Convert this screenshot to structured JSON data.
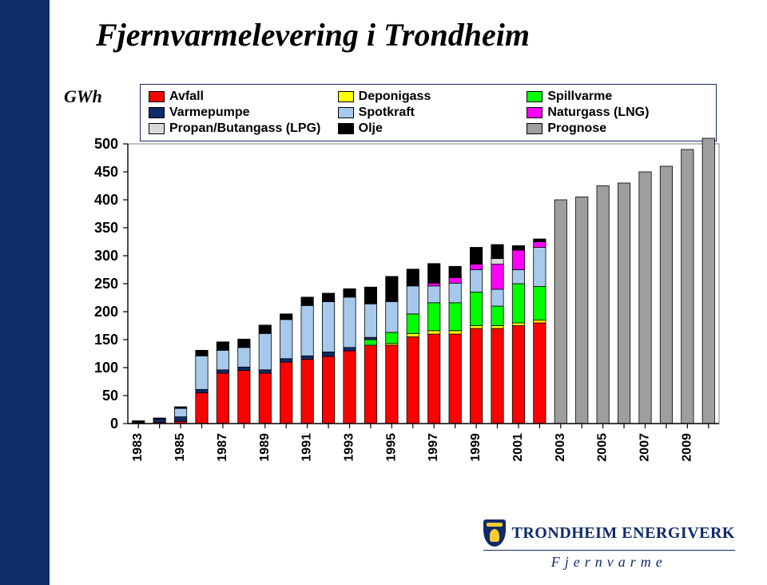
{
  "title": "Fjernvarmelevering i Trondheim",
  "y_unit": "GWh",
  "logo": {
    "brand": "TRONDHEIM ENERGIVERK",
    "sub": "Fjernvarme"
  },
  "chart": {
    "type": "stacked-bar",
    "background_color": "#ffffff",
    "plot_border_color": "#808080",
    "tick_color": "#000000",
    "ylim": [
      0,
      500
    ],
    "ytick_step": 50,
    "yticks": [
      0,
      50,
      100,
      150,
      200,
      250,
      300,
      350,
      400,
      450,
      500
    ],
    "axis_fontsize": 18,
    "axis_fontweight": "bold",
    "axis_fontfamily": "Arial, sans-serif",
    "xlabel_fontsize": 16,
    "bar_width": 0.58,
    "years": [
      1983,
      1984,
      1985,
      1986,
      1987,
      1988,
      1989,
      1990,
      1991,
      1992,
      1993,
      1994,
      1995,
      1996,
      1997,
      1998,
      1999,
      2000,
      2001,
      2002,
      2003,
      2004,
      2005,
      2006,
      2007,
      2008,
      2009,
      2010
    ],
    "x_tick_labels": [
      "1983",
      "",
      "1985",
      "",
      "1987",
      "",
      "1989",
      "",
      "1991",
      "",
      "1993",
      "",
      "1995",
      "",
      "1997",
      "",
      "1999",
      "",
      "2001",
      "",
      "2003",
      "",
      "2005",
      "",
      "2007",
      "",
      "2009",
      ""
    ],
    "legend": {
      "border_color": "#1a2a6b",
      "fontsize": 16,
      "fontfamily": "Arial, sans-serif",
      "order": [
        "Avfall",
        "Deponigass",
        "Spillvarme",
        "Varmepumpe",
        "Spotkraft",
        "Naturgass (LNG)",
        "Propan/Butangass (LPG)",
        "Olje",
        "Prognose"
      ]
    },
    "series": {
      "Avfall": {
        "color": "#ff0000",
        "border": "#000000"
      },
      "Deponigass": {
        "color": "#ffff00",
        "border": "#000000"
      },
      "Spillvarme": {
        "color": "#00ff00",
        "border": "#000000"
      },
      "Varmepumpe": {
        "color": "#0e2b6a",
        "border": "#000000"
      },
      "Spotkraft": {
        "color": "#a6c9ec",
        "border": "#000000"
      },
      "Naturgass (LNG)": {
        "color": "#ff00ff",
        "border": "#000000"
      },
      "Propan/Butangass (LPG)": {
        "color": "#d9d9d9",
        "border": "#000000"
      },
      "Olje": {
        "color": "#000000",
        "border": "#000000"
      },
      "Prognose": {
        "color": "#9e9e9e",
        "border": "#000000"
      }
    },
    "stack_order": [
      "Avfall",
      "Deponigass",
      "Spillvarme",
      "Varmepumpe",
      "Spotkraft",
      "Naturgass (LNG)",
      "Propan/Butangass (LPG)",
      "Olje",
      "Prognose"
    ],
    "data": {
      "Avfall": [
        0,
        2,
        4,
        55,
        90,
        95,
        90,
        110,
        115,
        120,
        130,
        140,
        140,
        155,
        160,
        160,
        170,
        170,
        175,
        180,
        0,
        0,
        0,
        0,
        0,
        0,
        0,
        0
      ],
      "Deponigass": [
        0,
        0,
        0,
        0,
        0,
        0,
        0,
        0,
        0,
        0,
        0,
        0,
        3,
        6,
        6,
        6,
        5,
        5,
        5,
        5,
        0,
        0,
        0,
        0,
        0,
        0,
        0,
        0
      ],
      "Spillvarme": [
        0,
        0,
        0,
        0,
        0,
        0,
        0,
        0,
        0,
        0,
        0,
        10,
        20,
        35,
        50,
        50,
        60,
        35,
        70,
        60,
        0,
        0,
        0,
        0,
        0,
        0,
        0,
        0
      ],
      "Varmepumpe": [
        0,
        6,
        8,
        6,
        6,
        6,
        6,
        6,
        6,
        8,
        6,
        4,
        0,
        0,
        0,
        0,
        0,
        0,
        0,
        0,
        0,
        0,
        0,
        0,
        0,
        0,
        0,
        0
      ],
      "Spotkraft": [
        0,
        0,
        15,
        60,
        35,
        35,
        65,
        70,
        90,
        90,
        90,
        60,
        55,
        50,
        30,
        35,
        40,
        30,
        25,
        70,
        0,
        0,
        0,
        0,
        0,
        0,
        0,
        0
      ],
      "Naturgass (LNG)": [
        0,
        0,
        0,
        0,
        0,
        0,
        0,
        0,
        0,
        0,
        0,
        0,
        0,
        0,
        5,
        10,
        10,
        45,
        35,
        10,
        0,
        0,
        0,
        0,
        0,
        0,
        0,
        0
      ],
      "Propan/Butangass (LPG)": [
        0,
        0,
        0,
        0,
        0,
        0,
        0,
        0,
        0,
        0,
        0,
        0,
        0,
        0,
        0,
        0,
        0,
        10,
        0,
        0,
        0,
        0,
        0,
        0,
        0,
        0,
        0,
        0
      ],
      "Olje": [
        5,
        2,
        3,
        10,
        15,
        15,
        15,
        10,
        15,
        15,
        15,
        30,
        45,
        30,
        35,
        20,
        30,
        25,
        8,
        5,
        0,
        0,
        0,
        0,
        0,
        0,
        0,
        0
      ],
      "Prognose": [
        0,
        0,
        0,
        0,
        0,
        0,
        0,
        0,
        0,
        0,
        0,
        0,
        0,
        0,
        0,
        0,
        0,
        0,
        0,
        0,
        400,
        405,
        425,
        430,
        450,
        460,
        490,
        510
      ]
    }
  }
}
